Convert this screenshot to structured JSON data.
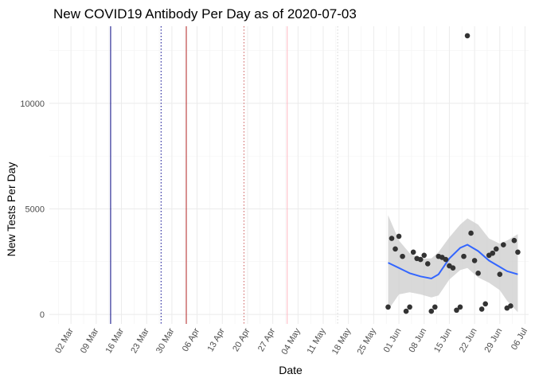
{
  "chart_data": {
    "type": "scatter",
    "title": "New COVID19 Antibody Per Day as of 2020-07-03",
    "xlabel": "Date",
    "ylabel": "New Tests Per Day",
    "xlim": [
      "2020-02-25",
      "2020-07-07"
    ],
    "ylim": [
      -450,
      13650
    ],
    "x_ticks": [
      "2020-03-02",
      "2020-03-09",
      "2020-03-16",
      "2020-03-23",
      "2020-03-30",
      "2020-04-06",
      "2020-04-13",
      "2020-04-20",
      "2020-04-27",
      "2020-05-04",
      "2020-05-11",
      "2020-05-18",
      "2020-05-25",
      "2020-06-01",
      "2020-06-08",
      "2020-06-15",
      "2020-06-22",
      "2020-06-29",
      "2020-07-06"
    ],
    "x_tick_labels": [
      "02 Mar",
      "09 Mar",
      "16 Mar",
      "23 Mar",
      "30 Mar",
      "06 Apr",
      "13 Apr",
      "20 Apr",
      "27 Apr",
      "04 May",
      "11 May",
      "18 May",
      "25 May",
      "01 Jun",
      "08 Jun",
      "15 Jun",
      "22 Jun",
      "29 Jun",
      "06 Jul"
    ],
    "x_tick_rotation": 60,
    "y_ticks": [
      0,
      5000,
      10000
    ],
    "y_tick_labels": [
      "0",
      "5000",
      "10000"
    ],
    "grid": true,
    "theme": "minimal",
    "reference_lines": [
      {
        "date": "2020-03-13",
        "color": "#000080",
        "style": "solid"
      },
      {
        "date": "2020-03-27",
        "color": "#00008b",
        "style": "dotted"
      },
      {
        "date": "2020-04-03",
        "color": "#b22222",
        "style": "solid"
      },
      {
        "date": "2020-04-19",
        "color": "#cd5c5c",
        "style": "dotted"
      },
      {
        "date": "2020-05-01",
        "color": "#ffb6c1",
        "style": "solid"
      },
      {
        "date": "2020-05-15",
        "color": "#d3d3d3",
        "style": "dotted"
      }
    ],
    "series": [
      {
        "type": "scatter",
        "color": "#333333",
        "points": [
          {
            "x": "2020-05-29",
            "y": 350
          },
          {
            "x": "2020-05-30",
            "y": 3600
          },
          {
            "x": "2020-05-31",
            "y": 3100
          },
          {
            "x": "2020-06-01",
            "y": 3700
          },
          {
            "x": "2020-06-02",
            "y": 2750
          },
          {
            "x": "2020-06-03",
            "y": 150
          },
          {
            "x": "2020-06-04",
            "y": 350
          },
          {
            "x": "2020-06-05",
            "y": 2950
          },
          {
            "x": "2020-06-06",
            "y": 2650
          },
          {
            "x": "2020-06-07",
            "y": 2600
          },
          {
            "x": "2020-06-08",
            "y": 2800
          },
          {
            "x": "2020-06-09",
            "y": 2400
          },
          {
            "x": "2020-06-10",
            "y": 150
          },
          {
            "x": "2020-06-11",
            "y": 350
          },
          {
            "x": "2020-06-12",
            "y": 2750
          },
          {
            "x": "2020-06-13",
            "y": 2700
          },
          {
            "x": "2020-06-14",
            "y": 2600
          },
          {
            "x": "2020-06-15",
            "y": 2300
          },
          {
            "x": "2020-06-16",
            "y": 2200
          },
          {
            "x": "2020-06-17",
            "y": 200
          },
          {
            "x": "2020-06-18",
            "y": 350
          },
          {
            "x": "2020-06-19",
            "y": 2750
          },
          {
            "x": "2020-06-20",
            "y": 13200
          },
          {
            "x": "2020-06-21",
            "y": 3850
          },
          {
            "x": "2020-06-22",
            "y": 2550
          },
          {
            "x": "2020-06-23",
            "y": 1950
          },
          {
            "x": "2020-06-24",
            "y": 250
          },
          {
            "x": "2020-06-25",
            "y": 500
          },
          {
            "x": "2020-06-26",
            "y": 2800
          },
          {
            "x": "2020-06-27",
            "y": 2900
          },
          {
            "x": "2020-06-28",
            "y": 3100
          },
          {
            "x": "2020-06-29",
            "y": 1900
          },
          {
            "x": "2020-06-30",
            "y": 3300
          },
          {
            "x": "2020-07-01",
            "y": 300
          },
          {
            "x": "2020-07-02",
            "y": 400
          },
          {
            "x": "2020-07-03",
            "y": 3500
          },
          {
            "x": "2020-07-04",
            "y": 2950
          }
        ]
      },
      {
        "type": "smooth",
        "color": "#3366ff",
        "band_color": "#cccccc",
        "points": [
          {
            "x": "2020-05-29",
            "y": 2450,
            "lo": 200,
            "hi": 4700
          },
          {
            "x": "2020-06-01",
            "y": 2200,
            "lo": 950,
            "hi": 3500
          },
          {
            "x": "2020-06-04",
            "y": 1950,
            "lo": 1050,
            "hi": 2900
          },
          {
            "x": "2020-06-07",
            "y": 1800,
            "lo": 950,
            "hi": 2650
          },
          {
            "x": "2020-06-10",
            "y": 1700,
            "lo": 800,
            "hi": 2650
          },
          {
            "x": "2020-06-12",
            "y": 1900,
            "lo": 900,
            "hi": 2950
          },
          {
            "x": "2020-06-15",
            "y": 2650,
            "lo": 1650,
            "hi": 3650
          },
          {
            "x": "2020-06-18",
            "y": 3150,
            "lo": 2100,
            "hi": 4250
          },
          {
            "x": "2020-06-20",
            "y": 3300,
            "lo": 2200,
            "hi": 4550
          },
          {
            "x": "2020-06-23",
            "y": 3000,
            "lo": 1750,
            "hi": 4250
          },
          {
            "x": "2020-06-26",
            "y": 2550,
            "lo": 1500,
            "hi": 3600
          },
          {
            "x": "2020-06-29",
            "y": 2250,
            "lo": 1150,
            "hi": 3350
          },
          {
            "x": "2020-07-01",
            "y": 2050,
            "lo": 650,
            "hi": 3500
          },
          {
            "x": "2020-07-04",
            "y": 1900,
            "lo": 100,
            "hi": 3800
          }
        ]
      }
    ]
  }
}
